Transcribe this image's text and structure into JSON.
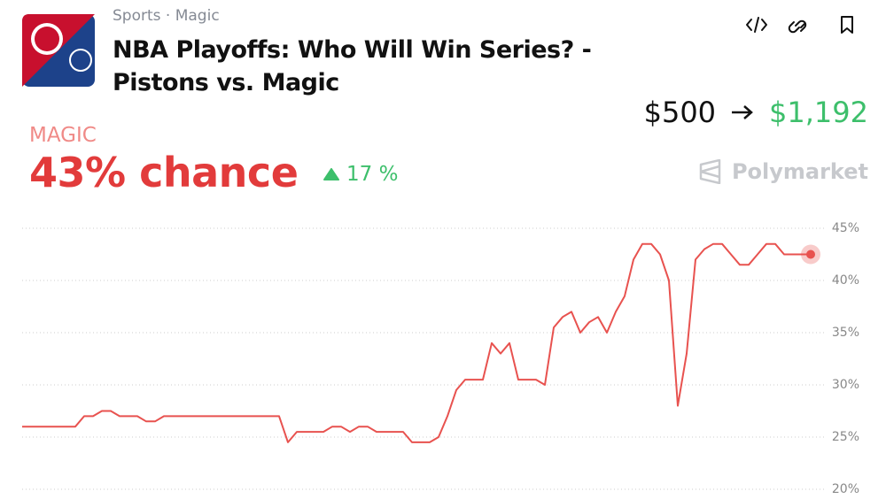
{
  "header": {
    "breadcrumb": [
      "Sports",
      "Magic"
    ],
    "title": "NBA Playoffs: Who Will Win Series? - Pistons vs. Magic"
  },
  "payout": {
    "stake": "$500",
    "return": "$1,192"
  },
  "outcome": {
    "name": "MAGIC",
    "chance": "43% chance",
    "change": "17 %"
  },
  "brand": "Polymarket",
  "chart_data": {
    "type": "line",
    "series": [
      {
        "name": "MAGIC",
        "color": "#e8524f",
        "values": [
          26,
          26,
          26,
          26,
          26,
          26,
          26,
          27,
          27,
          27.5,
          27.5,
          27,
          27,
          27,
          26.5,
          26.5,
          27,
          27,
          27,
          27,
          27,
          27,
          27,
          27,
          27,
          27,
          27,
          27,
          27,
          27,
          24.5,
          25.5,
          25.5,
          25.5,
          25.5,
          26,
          26,
          25.5,
          26,
          26,
          25.5,
          25.5,
          25.5,
          25.5,
          24.5,
          24.5,
          24.5,
          25,
          27,
          29.5,
          30.5,
          30.5,
          30.5,
          34,
          33,
          34,
          30.5,
          30.5,
          30.5,
          30,
          35.5,
          36.5,
          37,
          35,
          36,
          36.5,
          35,
          37,
          38.5,
          42,
          43.5,
          43.5,
          42.5,
          40,
          28,
          33,
          42,
          43,
          43.5,
          43.5,
          42.5,
          41.5,
          41.5,
          42.5,
          43.5,
          43.5,
          42.5,
          42.5,
          42.5,
          42.5
        ]
      }
    ],
    "ylim": [
      20,
      45
    ],
    "yticks": [
      {
        "value": 20,
        "label": "20%"
      },
      {
        "value": 25,
        "label": "25%"
      },
      {
        "value": 30,
        "label": "30%"
      },
      {
        "value": 35,
        "label": "35%"
      },
      {
        "value": 40,
        "label": "40%"
      },
      {
        "value": 45,
        "label": "45%"
      }
    ],
    "grid": true
  }
}
